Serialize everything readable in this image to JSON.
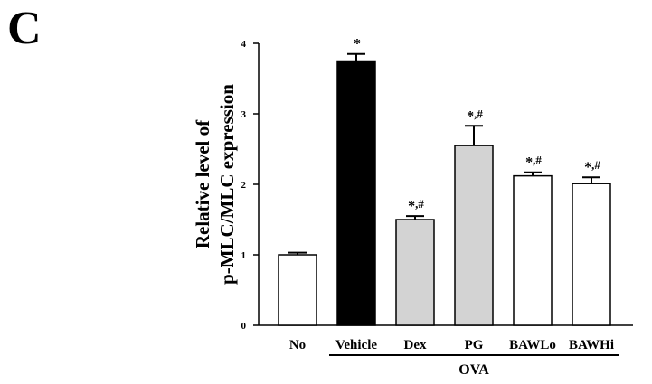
{
  "panel_label": "C",
  "chart_data": {
    "type": "bar",
    "ylabel_lines": [
      "Relative level of",
      "p-MLC/MLC expression"
    ],
    "xlabel": "",
    "ylim": [
      0,
      4
    ],
    "yticks": [
      0,
      1,
      2,
      3,
      4
    ],
    "categories": [
      "No",
      "Vehicle",
      "Dex",
      "PG",
      "BAWLo",
      "BAWHi"
    ],
    "values": [
      1.0,
      3.75,
      1.5,
      2.55,
      2.12,
      2.01
    ],
    "errors": [
      0.03,
      0.1,
      0.05,
      0.28,
      0.05,
      0.09
    ],
    "significance": [
      "",
      "*",
      "*,#",
      "*,#",
      "*,#",
      "*,#"
    ],
    "bar_colors": [
      "#ffffff",
      "#000000",
      "#d3d3d3",
      "#d3d3d3",
      "#ffffff",
      "#ffffff"
    ],
    "group_label": {
      "text": "OVA",
      "from": "Vehicle",
      "to": "BAWHi"
    },
    "grid": false
  }
}
